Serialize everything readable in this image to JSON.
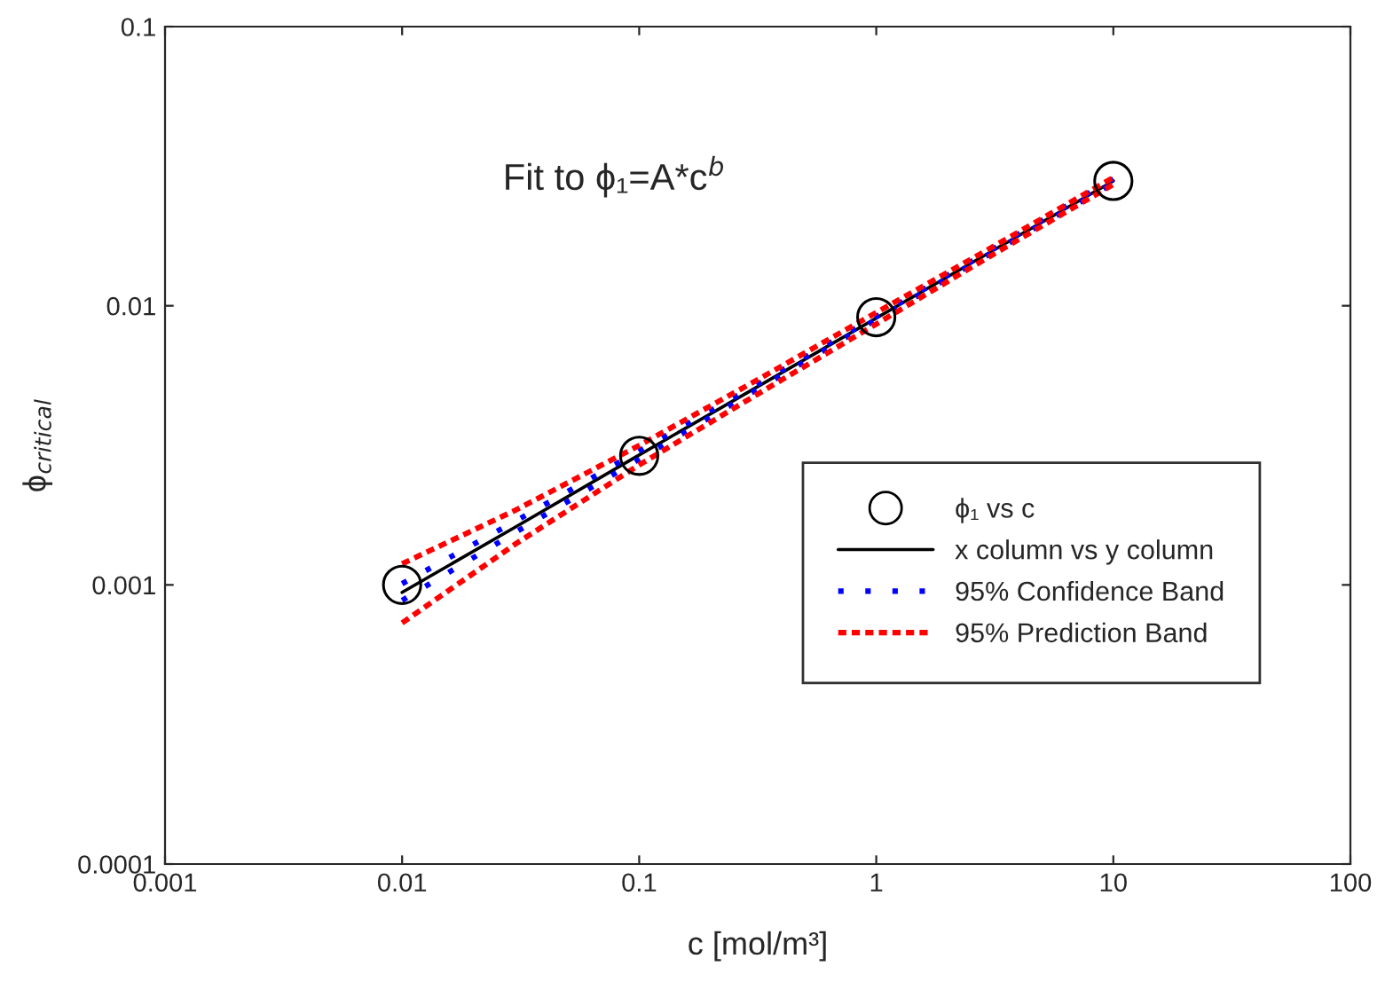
{
  "chart_data": {
    "type": "scatter",
    "xlabel": "c [mol/m³]",
    "ylabel": "ϕ$_{critical}$",
    "annotations": [
      {
        "text": "Fit to ϕ₁=A*c$^{b}$"
      }
    ],
    "log": "xy",
    "grid": false,
    "legend": "bottom right",
    "xlim": [
      0.001,
      100
    ],
    "xticks": [
      0.001,
      0.01,
      0.1,
      1,
      10,
      100
    ],
    "ylim": [
      0.0001,
      0.1
    ],
    "yticks": [
      0.0001,
      0.001,
      0.01,
      0.1
    ],
    "series": [
      {
        "name": "ϕ₁ vs c",
        "marker": "circle",
        "color": "#000000",
        "x": [
          0.01,
          0.1,
          1,
          10
        ],
        "values": [
          0.001,
          0.0029,
          0.0091,
          0.028
        ]
      },
      {
        "name": "x column vs y column",
        "type": "line",
        "line_style": "solid",
        "color": "#000000",
        "x": [
          0.01,
          0.03,
          0.1,
          0.3,
          1,
          3,
          10
        ],
        "values": [
          0.00094,
          0.00161,
          0.00292,
          0.005,
          0.00903,
          0.0155,
          0.028
        ]
      },
      {
        "name": "95% Confidence Band",
        "type": "line",
        "line_style": "dotted",
        "color": "#0000ff",
        "x": [
          0.01,
          0.03,
          0.1,
          0.3,
          1,
          3,
          10
        ],
        "values": [
          0.00101,
          0.00169,
          0.00302,
          0.00511,
          0.00915,
          0.0157,
          0.0285
        ]
      },
      {
        "type": "line",
        "line_style": "dotted",
        "color": "#0000ff",
        "x": [
          0.01,
          0.03,
          0.1,
          0.3,
          1,
          3,
          10
        ],
        "values": [
          0.00088,
          0.00154,
          0.00282,
          0.00489,
          0.00891,
          0.0153,
          0.0275
        ]
      },
      {
        "name": "95% Prediction Band",
        "type": "line",
        "line_style": "dashed",
        "color": "#ff0000",
        "x": [
          0.01,
          0.03,
          0.1,
          0.3,
          1,
          3,
          10
        ],
        "values": [
          0.00119,
          0.00185,
          0.00316,
          0.0053,
          0.00946,
          0.016,
          0.0288
        ]
      },
      {
        "type": "line",
        "line_style": "dashed",
        "color": "#ff0000",
        "x": [
          0.01,
          0.03,
          0.1,
          0.3,
          1,
          3,
          10
        ],
        "values": [
          0.00073,
          0.0014,
          0.00269,
          0.0047,
          0.0086,
          0.015,
          0.0272
        ]
      }
    ]
  }
}
